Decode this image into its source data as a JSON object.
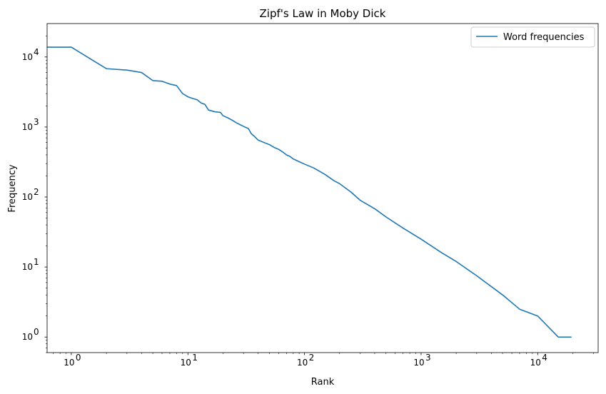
{
  "chart_data": {
    "type": "line",
    "title": "Zipf's Law in Moby Dick",
    "xlabel": "Rank",
    "ylabel": "Frequency",
    "x_scale": "log",
    "y_scale": "log",
    "xlim": [
      0.62,
      33000
    ],
    "ylim": [
      0.6,
      30000
    ],
    "grid": false,
    "legend_position": "top-right",
    "x_ticks": [
      {
        "value": 1,
        "base": "10",
        "exp": "0"
      },
      {
        "value": 10,
        "base": "10",
        "exp": "1"
      },
      {
        "value": 100,
        "base": "10",
        "exp": "2"
      },
      {
        "value": 1000,
        "base": "10",
        "exp": "3"
      },
      {
        "value": 10000,
        "base": "10",
        "exp": "4"
      }
    ],
    "y_ticks": [
      {
        "value": 1,
        "base": "10",
        "exp": "0"
      },
      {
        "value": 10,
        "base": "10",
        "exp": "1"
      },
      {
        "value": 100,
        "base": "10",
        "exp": "2"
      },
      {
        "value": 1000,
        "base": "10",
        "exp": "3"
      },
      {
        "value": 10000,
        "base": "10",
        "exp": "4"
      }
    ],
    "series": [
      {
        "name": "Word frequencies",
        "color": "#1f77b4",
        "x": [
          0.62,
          1,
          2,
          3,
          4,
          5,
          6,
          7,
          8,
          9,
          10,
          11,
          12,
          13,
          14,
          15,
          17,
          19,
          20,
          22,
          24,
          26,
          28,
          30,
          33,
          35,
          37,
          40,
          45,
          50,
          55,
          60,
          65,
          70,
          75,
          80,
          90,
          100,
          120,
          150,
          180,
          200,
          250,
          300,
          400,
          500,
          700,
          1000,
          1500,
          2000,
          3000,
          5000,
          7000,
          10000,
          15000,
          19500
        ],
        "y": [
          13800,
          13800,
          6800,
          6500,
          6000,
          4600,
          4500,
          4100,
          3900,
          3000,
          2700,
          2550,
          2450,
          2200,
          2100,
          1750,
          1650,
          1620,
          1450,
          1350,
          1250,
          1150,
          1080,
          1020,
          950,
          800,
          740,
          650,
          600,
          560,
          510,
          480,
          440,
          400,
          380,
          350,
          320,
          295,
          260,
          210,
          170,
          155,
          118,
          90,
          68,
          52,
          36,
          25,
          16,
          12,
          7.5,
          4,
          2.5,
          2,
          1,
          1
        ]
      }
    ]
  }
}
